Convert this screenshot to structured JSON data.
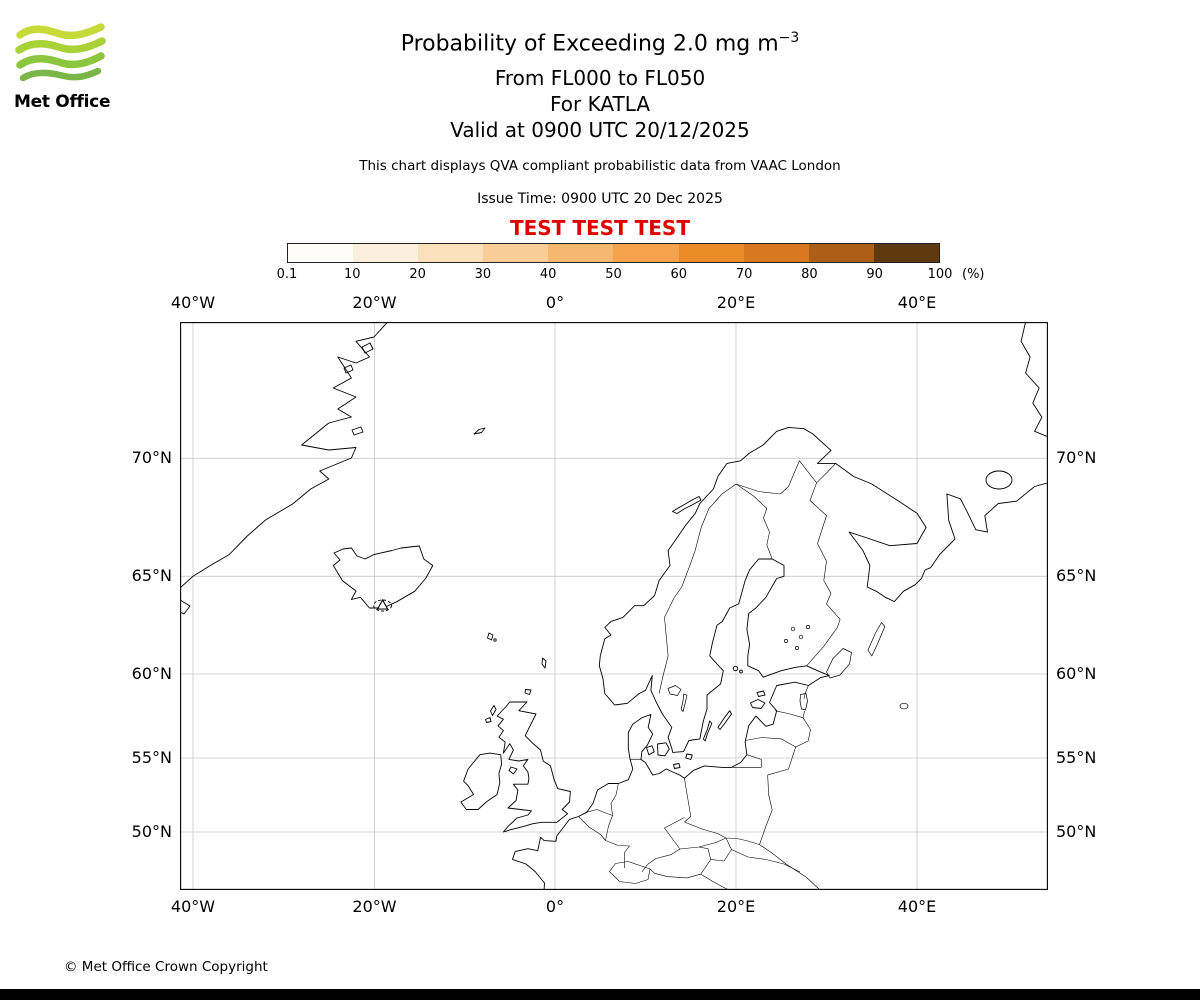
{
  "brand": {
    "name": "Met Office"
  },
  "header": {
    "title": "Probability of Exceeding 2.0 mg m",
    "title_sup": "−3",
    "flight_levels": "From FL000 to FL050",
    "volcano_line": "For KATLA",
    "valid_line": "Valid at 0900 UTC 20/12/2025",
    "note": "This chart displays QVA compliant probabilistic data from VAAC London",
    "issue_line": "Issue Time: 0900 UTC 20 Dec 2025",
    "test_banner": "TEST TEST TEST",
    "test_banner_color": "#e00000"
  },
  "colorbar": {
    "ticks": [
      "0.1",
      "10",
      "20",
      "30",
      "40",
      "50",
      "60",
      "70",
      "80",
      "90",
      "100"
    ],
    "unit": "(%)",
    "colors": [
      "#fffdf9",
      "#fbf0dd",
      "#fae0bb",
      "#f8cd96",
      "#f6b871",
      "#f4a24b",
      "#ec8c28",
      "#d87820",
      "#ad5f18",
      "#5f3a10"
    ]
  },
  "map": {
    "x_ticks": [
      "40°W",
      "20°W",
      "0°",
      "20°E",
      "40°E"
    ],
    "y_ticks": [
      "70°N",
      "65°N",
      "60°N",
      "55°N",
      "50°N"
    ]
  },
  "footer": {
    "copyright": "© Met Office Crown Copyright"
  },
  "chart_data": {
    "type": "map",
    "title": "Probability of Exceeding 2.0 mg m-3",
    "projection": "mercator",
    "lon_labels_deg": [
      -40,
      -20,
      0,
      20,
      40
    ],
    "lat_labels_deg": [
      70,
      65,
      60,
      55,
      50
    ],
    "volcano": {
      "name": "KATLA",
      "marker": "triangle",
      "approx_lon": -19.0,
      "approx_lat": 63.6
    },
    "probability_scale_percent": [
      0.1,
      10,
      20,
      30,
      40,
      50,
      60,
      70,
      80,
      90,
      100
    ],
    "exceedance_threshold": "2.0 mg m-3",
    "flight_levels": "FL000 to FL050",
    "valid_time": "0900 UTC 20/12/2025",
    "issue_time": "0900 UTC 20 Dec 2025",
    "source": "VAAC London",
    "shaded_probability_regions": "none visible on chart"
  }
}
